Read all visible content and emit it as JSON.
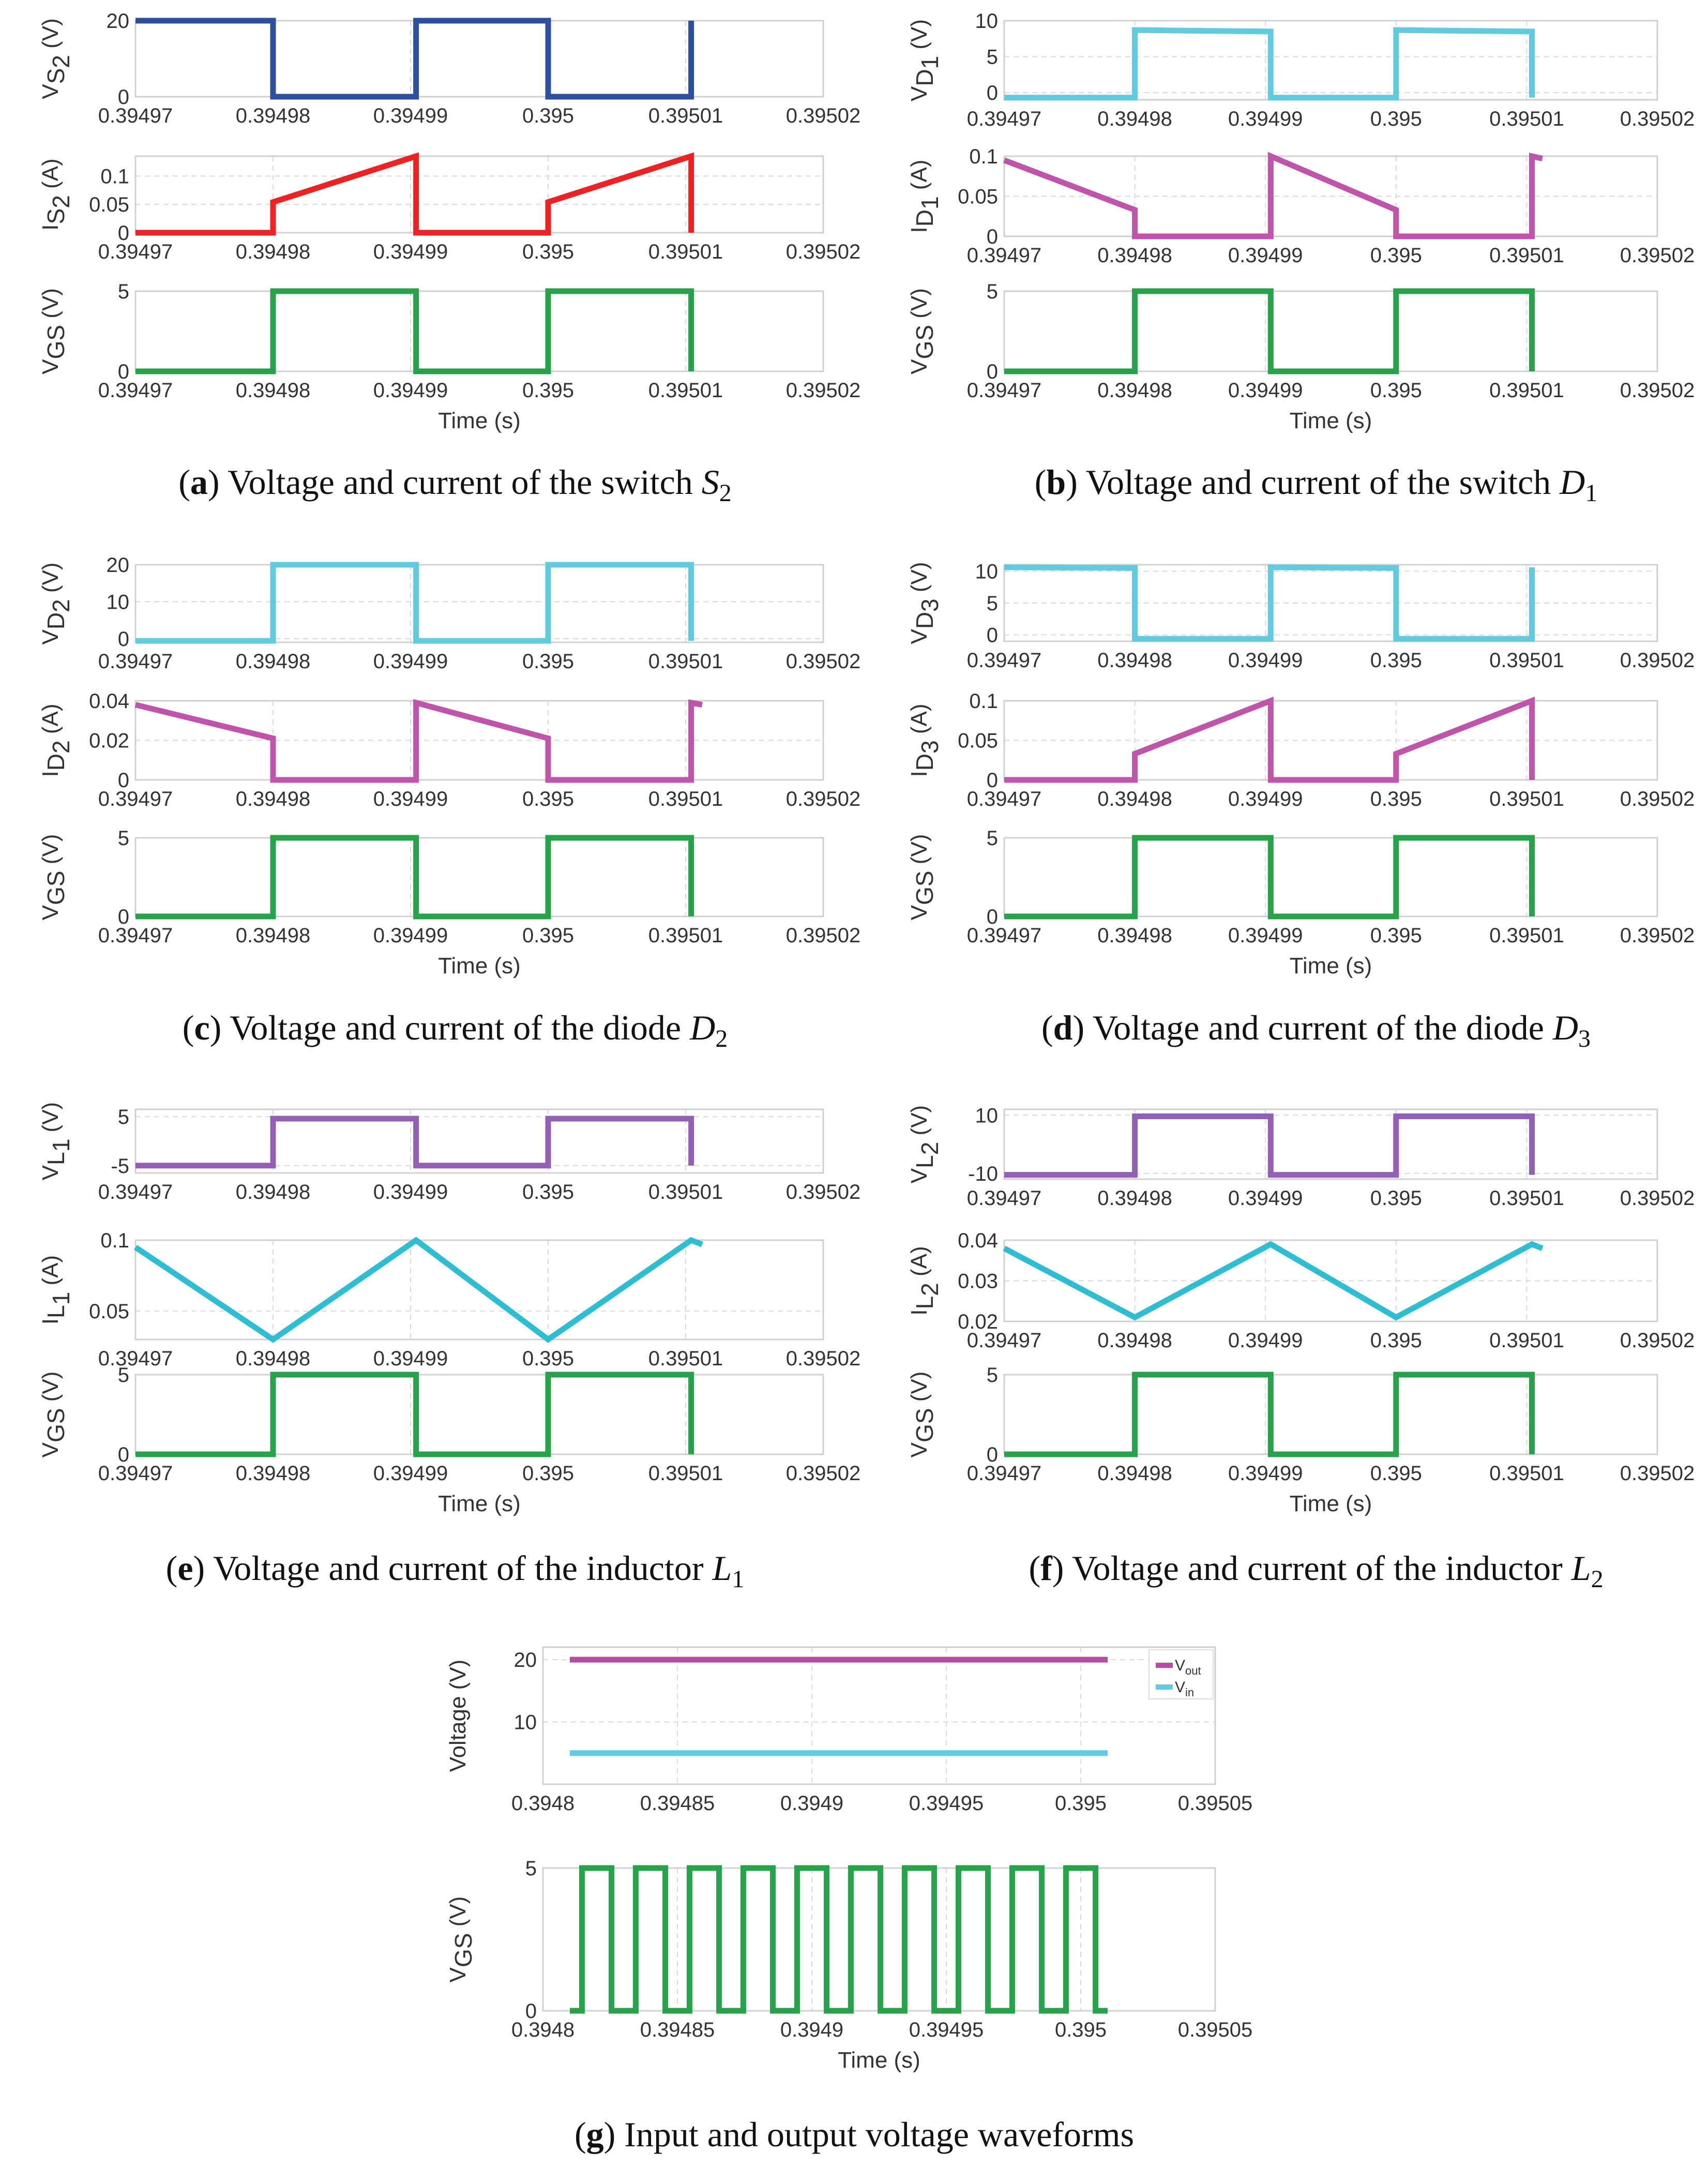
{
  "colors": {
    "vs2": "#2e4ea0",
    "is2": "#ee2222",
    "vgs": "#27a14a",
    "diodeV": "#63cbe0",
    "diodeI": "#bf55aa",
    "inductorV": "#9460b6",
    "inductorI": "#2fbdd2",
    "vout": "#b84ba5",
    "vin": "#63cbe0"
  },
  "common": {
    "time_ticks": [
      "0.39497",
      "0.39498",
      "0.39499",
      "0.395",
      "0.39501",
      "0.39502"
    ],
    "time_ticks_g": [
      "0.3948",
      "0.39485",
      "0.3949",
      "0.39495",
      "0.395",
      "0.39505"
    ],
    "vgs_ylabel_main": "V",
    "vgs_ylabel_sub": "GS",
    "xlabel": "Time (s)"
  },
  "captions": {
    "a": {
      "letter": "a",
      "text": " Voltage and current of the switch ",
      "sym": "S",
      "sub": "2"
    },
    "b": {
      "letter": "b",
      "text": " Voltage and current of the switch ",
      "sym": "D",
      "sub": "1"
    },
    "c": {
      "letter": "c",
      "text": " Voltage and current of the diode ",
      "sym": "D",
      "sub": "2"
    },
    "d": {
      "letter": "d",
      "text": " Voltage and current of the diode ",
      "sym": "D",
      "sub": "3"
    },
    "e": {
      "letter": "e",
      "text": " Voltage and current of the inductor ",
      "sym": "L",
      "sub": "1"
    },
    "f": {
      "letter": "f",
      "text": " Voltage and current of the inductor ",
      "sym": "L",
      "sub": "2"
    },
    "g": {
      "letter": "g",
      "text": " Input and output voltage waveforms",
      "sym": "",
      "sub": ""
    }
  },
  "legend": {
    "vout": {
      "main": "V",
      "sub": "out"
    },
    "vin": {
      "main": "V",
      "sub": "in"
    },
    "g_ylabel": "Voltage (V)"
  },
  "chart_data": [
    {
      "id": "a1",
      "type": "line",
      "ylabel": "V_S2 (V)",
      "ylabel_parts": {
        "main": "V",
        "sub": "S",
        "subsub": "2",
        "unit": "(V)"
      },
      "xlim": [
        0.39497,
        0.39502
      ],
      "ylim": [
        0,
        20
      ],
      "yticks": [
        "0",
        "20"
      ],
      "series": [
        {
          "x": [
            0.39497,
            0.39498,
            0.39498,
            0.3949904,
            0.3949904,
            0.395,
            0.395,
            0.3950104,
            0.3950104
          ],
          "y": [
            20,
            20,
            0,
            0,
            20,
            20,
            0,
            0,
            20
          ]
        }
      ]
    },
    {
      "id": "a2",
      "type": "line",
      "ylabel": "I_S2 (A)",
      "ylabel_parts": {
        "main": "I",
        "sub": "S",
        "subsub": "2",
        "unit": "(A)"
      },
      "xlim": [
        0.39497,
        0.39502
      ],
      "ylim": [
        0,
        0.135
      ],
      "yticks": [
        "0",
        "0.05",
        "0.1"
      ],
      "series": [
        {
          "x": [
            0.39497,
            0.39498,
            0.39498,
            0.3949904,
            0.3949904,
            0.395,
            0.395,
            0.3950104,
            0.3950104
          ],
          "y": [
            0,
            0,
            0.054,
            0.135,
            0,
            0,
            0.054,
            0.135,
            0
          ]
        }
      ]
    },
    {
      "id": "a3",
      "type": "line",
      "ylabel": "V_GS (V)",
      "xlabel": "Time (s)",
      "xlim": [
        0.39497,
        0.39502
      ],
      "ylim": [
        0,
        5
      ],
      "yticks": [
        "0",
        "5"
      ],
      "series": [
        {
          "x": [
            0.39497,
            0.39498,
            0.39498,
            0.3949904,
            0.3949904,
            0.395,
            0.395,
            0.3950104,
            0.3950104
          ],
          "y": [
            0,
            0,
            5,
            5,
            0,
            0,
            5,
            5,
            0
          ]
        }
      ]
    },
    {
      "id": "b1",
      "type": "line",
      "ylabel": "V_D1 (V)",
      "ylabel_parts": {
        "main": "V",
        "sub": "D",
        "subsub": "1",
        "unit": "(V)"
      },
      "xlim": [
        0.39497,
        0.39502
      ],
      "ylim": [
        -1,
        10
      ],
      "yticks": [
        "0",
        "5",
        "10"
      ],
      "series": [
        {
          "x": [
            0.39497,
            0.39498,
            0.39498,
            0.3949904,
            0.3949904,
            0.395,
            0.395,
            0.3950104,
            0.3950104
          ],
          "y": [
            -0.7,
            -0.7,
            8.7,
            8.5,
            -0.7,
            -0.7,
            8.7,
            8.5,
            -0.7
          ]
        }
      ]
    },
    {
      "id": "b2",
      "type": "line",
      "ylabel": "I_D1 (A)",
      "ylabel_parts": {
        "main": "I",
        "sub": "D",
        "subsub": "1",
        "unit": "(A)"
      },
      "xlim": [
        0.39497,
        0.39502
      ],
      "ylim": [
        0,
        0.1
      ],
      "yticks": [
        "0",
        "0.05",
        "0.1"
      ],
      "series": [
        {
          "x": [
            0.39497,
            0.39498,
            0.39498,
            0.3949904,
            0.3949904,
            0.395,
            0.395,
            0.3950104,
            0.3950104,
            0.3950112
          ],
          "y": [
            0.095,
            0.033,
            0,
            0,
            0.1,
            0.033,
            0,
            0,
            0.1,
            0.097
          ]
        }
      ]
    },
    {
      "id": "b3",
      "type": "line",
      "ylabel": "V_GS (V)",
      "xlabel": "Time (s)",
      "xlim": [
        0.39497,
        0.39502
      ],
      "ylim": [
        0,
        5
      ],
      "yticks": [
        "0",
        "5"
      ],
      "series": [
        {
          "x": [
            0.39497,
            0.39498,
            0.39498,
            0.3949904,
            0.3949904,
            0.395,
            0.395,
            0.3950104,
            0.3950104
          ],
          "y": [
            0,
            0,
            5,
            5,
            0,
            0,
            5,
            5,
            0
          ]
        }
      ]
    },
    {
      "id": "c1",
      "type": "line",
      "ylabel": "V_D2 (V)",
      "ylabel_parts": {
        "main": "V",
        "sub": "D",
        "subsub": "2",
        "unit": "(V)"
      },
      "xlim": [
        0.39497,
        0.39502
      ],
      "ylim": [
        -1,
        20
      ],
      "yticks": [
        "0",
        "10",
        "20"
      ],
      "series": [
        {
          "x": [
            0.39497,
            0.39498,
            0.39498,
            0.3949904,
            0.3949904,
            0.395,
            0.395,
            0.3950104,
            0.3950104
          ],
          "y": [
            -0.6,
            -0.6,
            20,
            20,
            -0.6,
            -0.6,
            20,
            20,
            -0.6
          ]
        }
      ]
    },
    {
      "id": "c2",
      "type": "line",
      "ylabel": "I_D2 (A)",
      "ylabel_parts": {
        "main": "I",
        "sub": "D",
        "subsub": "2",
        "unit": "(A)"
      },
      "xlim": [
        0.39497,
        0.39502
      ],
      "ylim": [
        0,
        0.04
      ],
      "yticks": [
        "0",
        "0.02",
        "0.04"
      ],
      "series": [
        {
          "x": [
            0.39497,
            0.39498,
            0.39498,
            0.3949904,
            0.3949904,
            0.395,
            0.395,
            0.3950104,
            0.3950104,
            0.3950112
          ],
          "y": [
            0.038,
            0.021,
            0,
            0,
            0.039,
            0.021,
            0,
            0,
            0.039,
            0.038
          ]
        }
      ]
    },
    {
      "id": "c3",
      "type": "line",
      "ylabel": "V_GS (V)",
      "xlabel": "Time (s)",
      "xlim": [
        0.39497,
        0.39502
      ],
      "ylim": [
        0,
        5
      ],
      "yticks": [
        "0",
        "5"
      ],
      "series": [
        {
          "x": [
            0.39497,
            0.39498,
            0.39498,
            0.3949904,
            0.3949904,
            0.395,
            0.395,
            0.3950104,
            0.3950104
          ],
          "y": [
            0,
            0,
            5,
            5,
            0,
            0,
            5,
            5,
            0
          ]
        }
      ]
    },
    {
      "id": "d1",
      "type": "line",
      "ylabel": "V_D3 (V)",
      "ylabel_parts": {
        "main": "V",
        "sub": "D",
        "subsub": "3",
        "unit": "(V)"
      },
      "xlim": [
        0.39497,
        0.39502
      ],
      "ylim": [
        -1,
        11
      ],
      "yticks": [
        "0",
        "5",
        "10"
      ],
      "series": [
        {
          "x": [
            0.39497,
            0.39498,
            0.39498,
            0.3949904,
            0.3949904,
            0.395,
            0.395,
            0.3950104,
            0.3950104
          ],
          "y": [
            10.6,
            10.5,
            -0.6,
            -0.6,
            10.6,
            10.5,
            -0.6,
            -0.6,
            10.6
          ]
        }
      ]
    },
    {
      "id": "d2",
      "type": "line",
      "ylabel": "I_D3 (A)",
      "ylabel_parts": {
        "main": "I",
        "sub": "D",
        "subsub": "3",
        "unit": "(A)"
      },
      "xlim": [
        0.39497,
        0.39502
      ],
      "ylim": [
        0,
        0.1
      ],
      "yticks": [
        "0",
        "0.05",
        "0.1"
      ],
      "series": [
        {
          "x": [
            0.39497,
            0.39498,
            0.39498,
            0.3949904,
            0.3949904,
            0.395,
            0.395,
            0.3950104,
            0.3950104
          ],
          "y": [
            0,
            0,
            0.033,
            0.1,
            0,
            0,
            0.033,
            0.1,
            0
          ]
        }
      ]
    },
    {
      "id": "d3",
      "type": "line",
      "ylabel": "V_GS (V)",
      "xlabel": "Time (s)",
      "xlim": [
        0.39497,
        0.39502
      ],
      "ylim": [
        0,
        5
      ],
      "yticks": [
        "0",
        "5"
      ],
      "series": [
        {
          "x": [
            0.39497,
            0.39498,
            0.39498,
            0.3949904,
            0.3949904,
            0.395,
            0.395,
            0.3950104,
            0.3950104
          ],
          "y": [
            0,
            0,
            5,
            5,
            0,
            0,
            5,
            5,
            0
          ]
        }
      ]
    },
    {
      "id": "e1",
      "type": "line",
      "ylabel": "V_L1 (V)",
      "ylabel_parts": {
        "main": "V",
        "sub": "L",
        "subsub": "1",
        "unit": "(V)"
      },
      "xlim": [
        0.39497,
        0.39502
      ],
      "ylim": [
        -6.5,
        6.5
      ],
      "yticks": [
        "-5",
        "5"
      ],
      "series": [
        {
          "x": [
            0.39497,
            0.39498,
            0.39498,
            0.3949904,
            0.3949904,
            0.395,
            0.395,
            0.3950104,
            0.3950104
          ],
          "y": [
            -5,
            -5,
            4.6,
            4.6,
            -5,
            -5,
            4.6,
            4.6,
            -5
          ]
        }
      ]
    },
    {
      "id": "e2",
      "type": "line",
      "ylabel": "I_L1 (A)",
      "ylabel_parts": {
        "main": "I",
        "sub": "L",
        "subsub": "1",
        "unit": "(A)"
      },
      "xlim": [
        0.39497,
        0.39502
      ],
      "ylim": [
        0.03,
        0.1
      ],
      "yticks": [
        "0.05",
        "0.1"
      ],
      "series": [
        {
          "x": [
            0.39497,
            0.39498,
            0.3949904,
            0.395,
            0.3950104,
            0.3950112
          ],
          "y": [
            0.095,
            0.03,
            0.1,
            0.03,
            0.1,
            0.097
          ]
        }
      ]
    },
    {
      "id": "e3",
      "type": "line",
      "ylabel": "V_GS (V)",
      "xlabel": "Time (s)",
      "xlim": [
        0.39497,
        0.39502
      ],
      "ylim": [
        0,
        5
      ],
      "yticks": [
        "0",
        "5"
      ],
      "series": [
        {
          "x": [
            0.39497,
            0.39498,
            0.39498,
            0.3949904,
            0.3949904,
            0.395,
            0.395,
            0.3950104,
            0.3950104
          ],
          "y": [
            0,
            0,
            5,
            5,
            0,
            0,
            5,
            5,
            0
          ]
        }
      ]
    },
    {
      "id": "f1",
      "type": "line",
      "ylabel": "V_L2 (V)",
      "ylabel_parts": {
        "main": "V",
        "sub": "L",
        "subsub": "2",
        "unit": "(V)"
      },
      "xlim": [
        0.39497,
        0.39502
      ],
      "ylim": [
        -12,
        12
      ],
      "yticks": [
        "-10",
        "10"
      ],
      "series": [
        {
          "x": [
            0.39497,
            0.39498,
            0.39498,
            0.3949904,
            0.3949904,
            0.395,
            0.395,
            0.3950104,
            0.3950104
          ],
          "y": [
            -10.5,
            -10.5,
            9.6,
            9.6,
            -10.5,
            -10.5,
            9.6,
            9.6,
            -10.5
          ]
        }
      ]
    },
    {
      "id": "f2",
      "type": "line",
      "ylabel": "I_L2 (A)",
      "ylabel_parts": {
        "main": "I",
        "sub": "L",
        "subsub": "2",
        "unit": "(A)"
      },
      "xlim": [
        0.39497,
        0.39502
      ],
      "ylim": [
        0.02,
        0.04
      ],
      "yticks": [
        "0.02",
        "0.03",
        "0.04"
      ],
      "series": [
        {
          "x": [
            0.39497,
            0.39498,
            0.3949904,
            0.395,
            0.3950104,
            0.3950112
          ],
          "y": [
            0.038,
            0.021,
            0.039,
            0.021,
            0.039,
            0.038
          ]
        }
      ]
    },
    {
      "id": "f3",
      "type": "line",
      "ylabel": "V_GS (V)",
      "xlabel": "Time (s)",
      "xlim": [
        0.39497,
        0.39502
      ],
      "ylim": [
        0,
        5
      ],
      "yticks": [
        "0",
        "5"
      ],
      "series": [
        {
          "x": [
            0.39497,
            0.39498,
            0.39498,
            0.3949904,
            0.3949904,
            0.395,
            0.395,
            0.3950104,
            0.3950104
          ],
          "y": [
            0,
            0,
            5,
            5,
            0,
            0,
            5,
            5,
            0
          ]
        }
      ]
    },
    {
      "id": "g1",
      "type": "line",
      "ylabel": "Voltage (V)",
      "xlim": [
        0.3948,
        0.39505
      ],
      "ylim": [
        0,
        22
      ],
      "yticks": [
        "10",
        "20"
      ],
      "legend": "top-right",
      "series": [
        {
          "name": "Vout",
          "x": [
            0.39481,
            0.39501
          ],
          "y": [
            20,
            20
          ]
        },
        {
          "name": "Vin",
          "x": [
            0.39481,
            0.39501
          ],
          "y": [
            5,
            5
          ]
        }
      ]
    },
    {
      "id": "g2",
      "type": "line",
      "ylabel": "V_GS (V)",
      "xlabel": "Time (s)",
      "xlim": [
        0.3948,
        0.39505
      ],
      "ylim": [
        0,
        5
      ],
      "yticks": [
        "0",
        "5"
      ],
      "period": 2e-05,
      "duty": 0.55,
      "t_start": 0.39481,
      "t_end": 0.39501
    }
  ]
}
